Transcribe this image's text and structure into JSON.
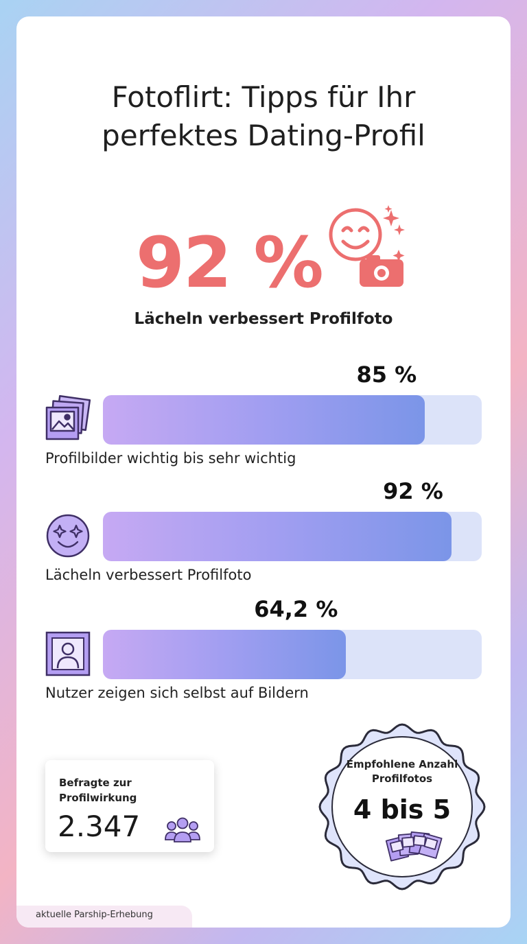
{
  "title": [
    "Fotoflirt: Tipps für Ihr",
    "perfektes Dating-Profil"
  ],
  "colors": {
    "accent": "#ec6f6f",
    "bar_fill_start": "#c6a9f3",
    "bar_fill_end": "#7b95e8",
    "bar_track": "#dce3f9",
    "icon_purple": "#b49ef2"
  },
  "hero": {
    "value": "92 %",
    "label": "Lächeln verbessert Profilfoto",
    "icon": "smiley-camera-icon"
  },
  "chart_data": {
    "type": "bar",
    "orientation": "horizontal",
    "xlim": [
      0,
      100
    ],
    "unit": "%",
    "categories": [
      "Profilbilder wichtig bis sehr wichtig",
      "Lächeln verbessert Profilfoto",
      "Nutzer zeigen sich selbst auf Bildern"
    ],
    "values": [
      85,
      92,
      64.2
    ],
    "value_labels": [
      "85 %",
      "92 %",
      "64,2 %"
    ],
    "icons": [
      "photo-stack-icon",
      "starry-smiley-icon",
      "portrait-icon"
    ]
  },
  "stat": {
    "label": "Befragte zur Profilwirkung",
    "value": "2.347",
    "icon": "people-icon"
  },
  "badge": {
    "label": "Empfohlene Anzahl Profilfotos",
    "value": "4 bis 5",
    "icon": "photos-fan-icon"
  },
  "footer": "aktuelle Parship-Erhebung"
}
